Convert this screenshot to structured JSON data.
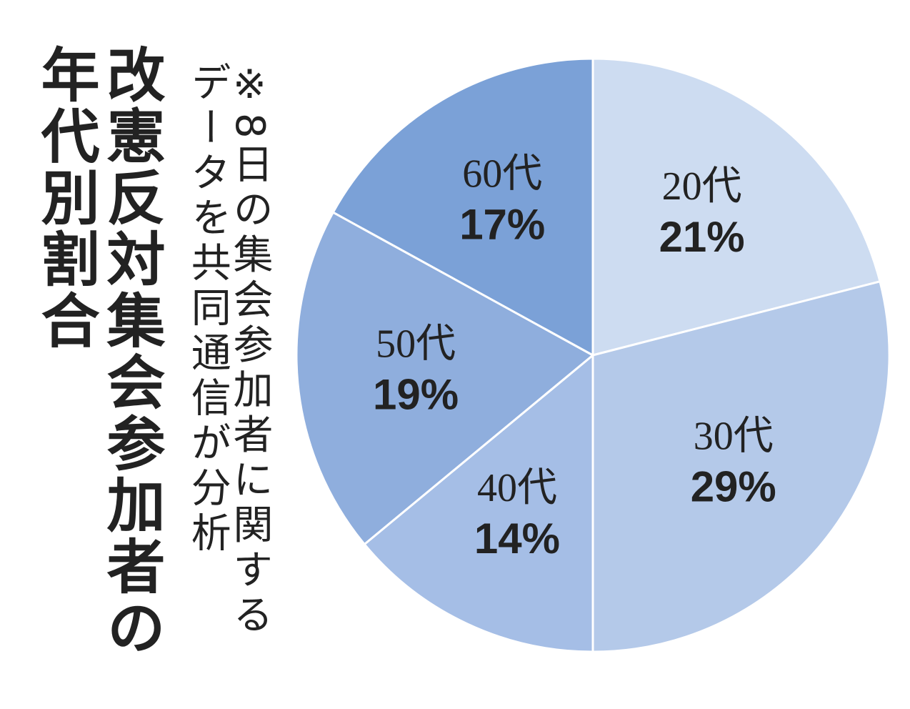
{
  "chart_data": {
    "type": "pie",
    "title": "改憲反対集会参加者の年代別割合",
    "note": "※8日の集会参加者に関するデータを共同通信が分析",
    "categories": [
      "20代",
      "30代",
      "40代",
      "50代",
      "60代"
    ],
    "values": [
      21,
      29,
      14,
      19,
      17
    ],
    "value_labels": [
      "21%",
      "29%",
      "14%",
      "19%",
      "17%"
    ],
    "colors": [
      "#cddcf1",
      "#b4c9e9",
      "#a5bee6",
      "#8faedd",
      "#7ba1d7"
    ]
  }
}
